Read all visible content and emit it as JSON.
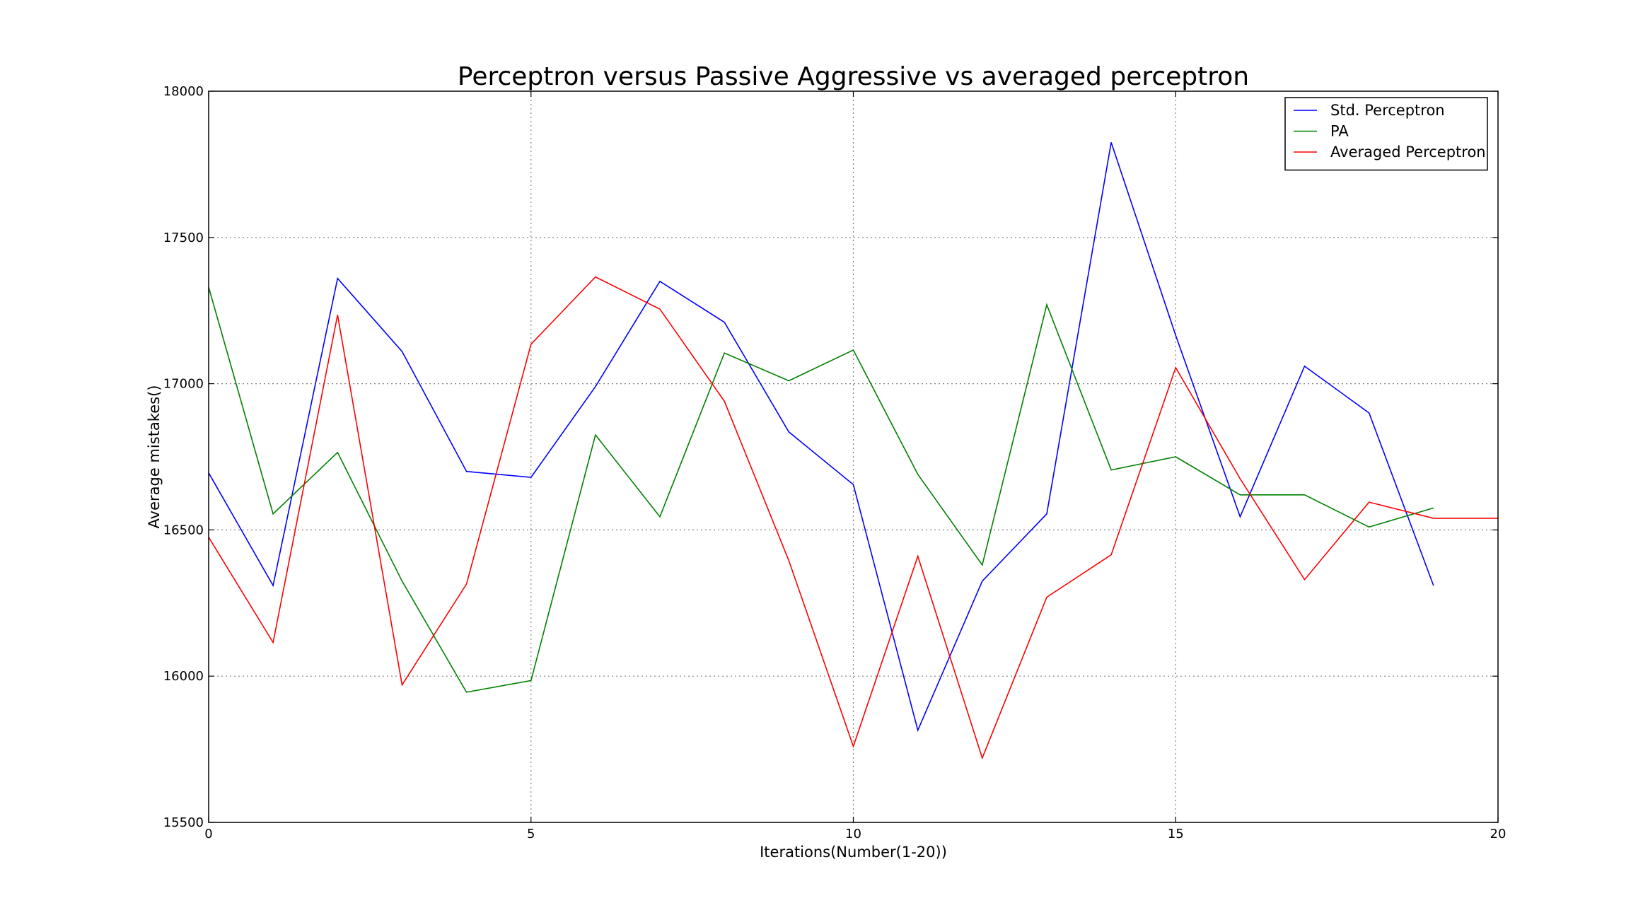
{
  "chart_data": {
    "type": "line",
    "title": "Perceptron versus Passive Aggressive vs averaged perceptron",
    "xlabel": "Iterations(Number(1-20))",
    "ylabel": "Average mistakes()",
    "xlim": [
      0,
      20
    ],
    "ylim": [
      15500,
      18000
    ],
    "xticks": [
      0,
      5,
      10,
      15,
      20
    ],
    "yticks": [
      15500,
      16000,
      16500,
      17000,
      17500,
      18000
    ],
    "grid": true,
    "legend_position": "top-right",
    "series": [
      {
        "name": "Std. Perceptron",
        "color": "#0000ff",
        "x": [
          0,
          1,
          2,
          3,
          4,
          5,
          6,
          7,
          8,
          9,
          10,
          11,
          12,
          13,
          14,
          15,
          16,
          17,
          18,
          19
        ],
        "values": [
          16695,
          16310,
          17360,
          17110,
          16700,
          16680,
          16990,
          17350,
          17210,
          16835,
          16655,
          15815,
          16325,
          16555,
          17825,
          17165,
          16545,
          17060,
          16900,
          16310
        ]
      },
      {
        "name": "PA",
        "color": "#008000",
        "x": [
          0,
          1,
          2,
          3,
          4,
          5,
          6,
          7,
          8,
          9,
          10,
          11,
          12,
          13,
          14,
          15,
          16,
          17,
          18,
          19
        ],
        "values": [
          17330,
          16555,
          16765,
          16325,
          15945,
          15985,
          16825,
          16545,
          17105,
          17010,
          17115,
          16690,
          16380,
          17270,
          16705,
          16750,
          16620,
          16620,
          16510,
          16575
        ]
      },
      {
        "name": "Averaged Perceptron",
        "color": "#ff0000",
        "x": [
          0,
          1,
          2,
          3,
          4,
          5,
          6,
          7,
          8,
          9,
          10,
          11,
          12,
          13,
          14,
          15,
          16,
          17,
          18,
          19,
          20
        ],
        "values": [
          16475,
          16115,
          17235,
          15970,
          16315,
          17135,
          17365,
          17255,
          16940,
          16395,
          15760,
          16410,
          15720,
          16270,
          16415,
          17055,
          16675,
          16330,
          16595,
          16540,
          16540
        ]
      }
    ]
  }
}
